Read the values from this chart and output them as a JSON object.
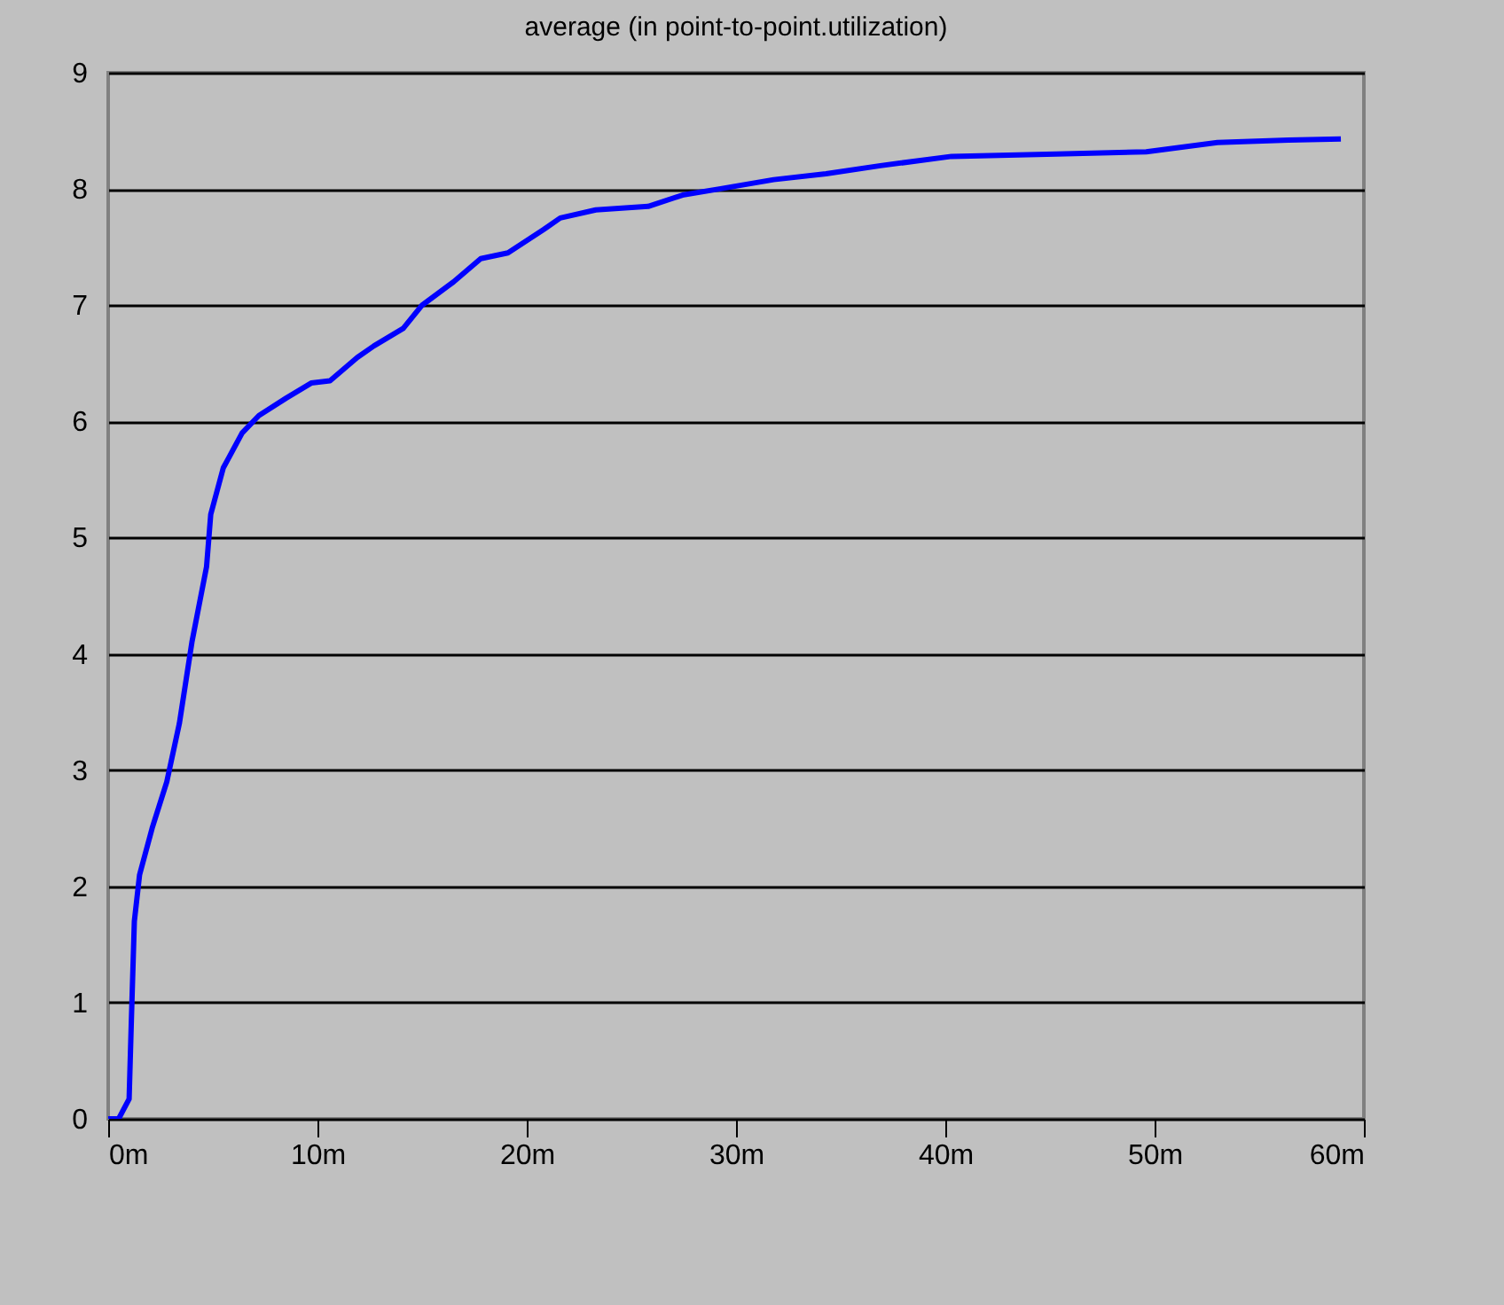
{
  "chart_data": {
    "type": "line",
    "title": "average (in point-to-point.utilization)",
    "x": [
      0,
      0.5,
      1.0,
      1.1,
      1.25,
      1.5,
      2.1,
      2.8,
      3.4,
      4.0,
      4.7,
      4.9,
      5.5,
      6.4,
      7.2,
      8.5,
      9.7,
      10.6,
      11.9,
      12.7,
      14.1,
      15,
      16.5,
      17.8,
      19.1,
      20.8,
      21.6,
      23.3,
      25.8,
      27.5,
      29.2,
      31.8,
      34.3,
      36.9,
      40.3,
      45.3,
      49.6,
      53,
      56.4,
      58.9
    ],
    "series": [
      {
        "color": "#0000ff",
        "values": [
          0,
          0,
          0.17,
          0.8,
          1.7,
          2.1,
          2.5,
          2.9,
          3.4,
          4.1,
          4.75,
          5.2,
          5.6,
          5.9,
          6.05,
          6.2,
          6.33,
          6.35,
          6.55,
          6.65,
          6.8,
          7.0,
          7.2,
          7.4,
          7.45,
          7.65,
          7.75,
          7.82,
          7.85,
          7.95,
          8.0,
          8.08,
          8.13,
          8.2,
          8.28,
          8.3,
          8.32,
          8.4,
          8.42,
          8.43
        ]
      }
    ],
    "xlim": [
      0,
      60
    ],
    "xticks": [
      {
        "value": 0,
        "label": "0m"
      },
      {
        "value": 10,
        "label": "10m"
      },
      {
        "value": 20,
        "label": "20m"
      },
      {
        "value": 30,
        "label": "30m"
      },
      {
        "value": 40,
        "label": "40m"
      },
      {
        "value": 50,
        "label": "50m"
      },
      {
        "value": 60,
        "label": "60m"
      }
    ],
    "ylim": [
      0,
      9
    ],
    "yticks": [
      0,
      1,
      2,
      3,
      4,
      5,
      6,
      7,
      8,
      9
    ],
    "grid": "y",
    "marker": "none",
    "line_style": "solid"
  }
}
